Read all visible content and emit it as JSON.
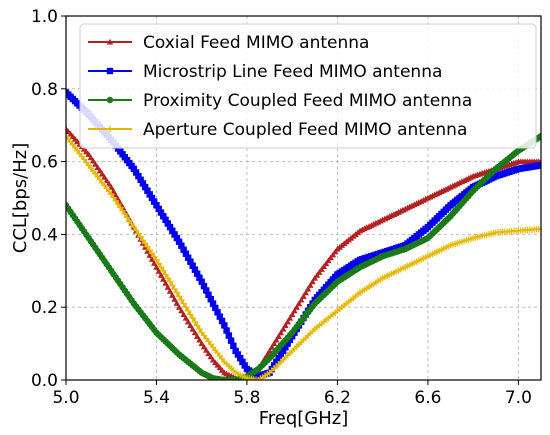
{
  "chart_data": {
    "type": "line",
    "title": "",
    "xlabel": "Freq[GHz]",
    "ylabel": "CCL[bps/Hz]",
    "xlim": [
      5.0,
      7.1
    ],
    "ylim": [
      0.0,
      1.0
    ],
    "xticks": [
      {
        "value": 5.0,
        "label": "5.0"
      },
      {
        "value": 5.4,
        "label": "5.4"
      },
      {
        "value": 5.8,
        "label": "5.8"
      },
      {
        "value": 6.2,
        "label": "6.2"
      },
      {
        "value": 6.6,
        "label": "6.6"
      },
      {
        "value": 7.0,
        "label": "7.0"
      }
    ],
    "yticks": [
      {
        "value": 0.0,
        "label": "0.0"
      },
      {
        "value": 0.2,
        "label": "0.2"
      },
      {
        "value": 0.4,
        "label": "0.4"
      },
      {
        "value": 0.6,
        "label": "0.6"
      },
      {
        "value": 0.8,
        "label": "0.8"
      },
      {
        "value": 1.0,
        "label": "1.0"
      }
    ],
    "grid": true,
    "legend_position": "top-right",
    "series": [
      {
        "name": "Coxial Feed MIMO antenna",
        "color": "#b22222",
        "marker": "triangle",
        "x": [
          5.0,
          5.1,
          5.2,
          5.3,
          5.4,
          5.5,
          5.6,
          5.65,
          5.7,
          5.75,
          5.8,
          5.85,
          5.9,
          6.0,
          6.1,
          6.2,
          6.3,
          6.4,
          6.5,
          6.6,
          6.7,
          6.8,
          6.9,
          7.0,
          7.1
        ],
        "y": [
          0.69,
          0.62,
          0.53,
          0.42,
          0.31,
          0.2,
          0.1,
          0.055,
          0.02,
          0.005,
          0.003,
          0.03,
          0.08,
          0.18,
          0.28,
          0.36,
          0.41,
          0.44,
          0.47,
          0.5,
          0.53,
          0.56,
          0.58,
          0.6,
          0.6
        ]
      },
      {
        "name": "Microstrip Line Feed MIMO antenna",
        "color": "#0000ee",
        "marker": "square",
        "x": [
          5.0,
          5.1,
          5.2,
          5.3,
          5.4,
          5.5,
          5.6,
          5.7,
          5.75,
          5.8,
          5.85,
          5.9,
          6.0,
          6.1,
          6.2,
          6.3,
          6.4,
          6.5,
          6.6,
          6.7,
          6.8,
          6.9,
          7.0,
          7.1
        ],
        "y": [
          0.79,
          0.73,
          0.66,
          0.58,
          0.48,
          0.38,
          0.27,
          0.15,
          0.08,
          0.03,
          0.01,
          0.02,
          0.12,
          0.22,
          0.29,
          0.33,
          0.35,
          0.37,
          0.42,
          0.48,
          0.53,
          0.56,
          0.58,
          0.59
        ]
      },
      {
        "name": "Proximity Coupled Feed MIMO antenna",
        "color": "#1a7a1a",
        "marker": "circle",
        "x": [
          5.0,
          5.1,
          5.2,
          5.3,
          5.4,
          5.5,
          5.6,
          5.65,
          5.7,
          5.75,
          5.8,
          5.85,
          5.9,
          6.0,
          6.1,
          6.2,
          6.3,
          6.4,
          6.5,
          6.6,
          6.7,
          6.8,
          6.9,
          7.0,
          7.1
        ],
        "y": [
          0.48,
          0.39,
          0.3,
          0.21,
          0.13,
          0.07,
          0.02,
          0.005,
          0.0,
          0.0,
          0.01,
          0.03,
          0.06,
          0.13,
          0.21,
          0.27,
          0.31,
          0.34,
          0.36,
          0.39,
          0.45,
          0.52,
          0.58,
          0.63,
          0.67
        ]
      },
      {
        "name": "Aperture Coupled Feed MIMO antenna",
        "color": "#e6b800",
        "marker": "plus",
        "x": [
          5.0,
          5.1,
          5.2,
          5.3,
          5.4,
          5.5,
          5.6,
          5.7,
          5.75,
          5.8,
          5.85,
          5.9,
          6.0,
          6.1,
          6.2,
          6.3,
          6.4,
          6.5,
          6.6,
          6.7,
          6.8,
          6.9,
          7.0,
          7.1
        ],
        "y": [
          0.67,
          0.59,
          0.51,
          0.42,
          0.33,
          0.23,
          0.13,
          0.05,
          0.02,
          0.005,
          0.0,
          0.02,
          0.08,
          0.14,
          0.19,
          0.24,
          0.28,
          0.31,
          0.34,
          0.37,
          0.39,
          0.405,
          0.41,
          0.415
        ]
      }
    ]
  }
}
